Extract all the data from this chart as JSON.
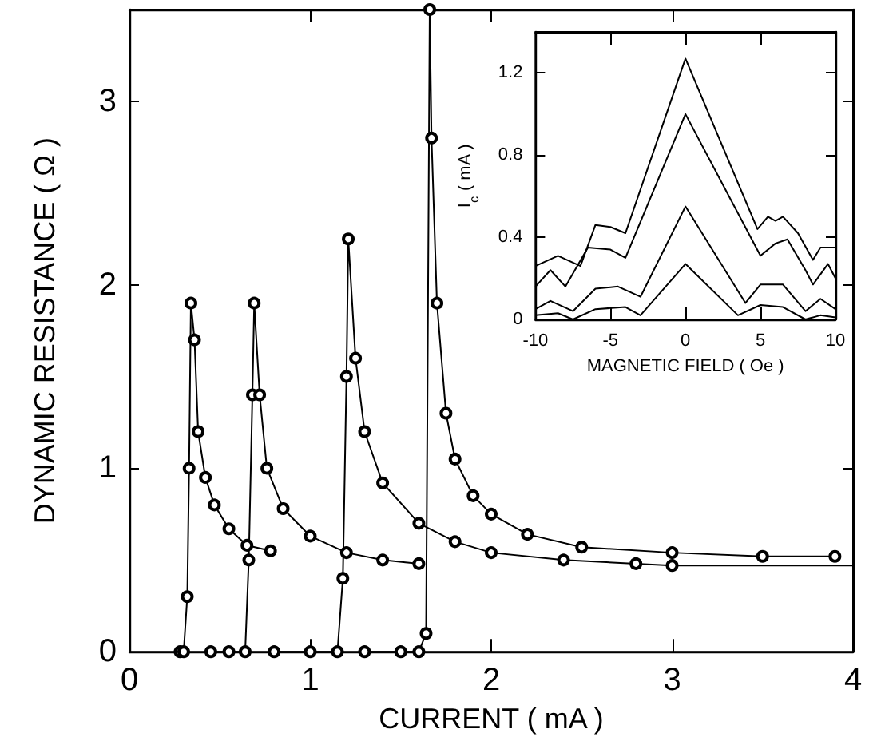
{
  "chart_data": [
    {
      "type": "line",
      "xlabel": "CURRENT ( mA )",
      "ylabel": "DYNAMIC RESISTANCE ( Ω )",
      "xlim": [
        0,
        4
      ],
      "ylim": [
        0,
        3.5
      ],
      "xticks": [
        0,
        1,
        2,
        3,
        4
      ],
      "yticks": [
        0,
        1,
        2,
        3
      ],
      "grid": false,
      "marker": "circle",
      "line_style": "solid",
      "series": [
        {
          "color": "#000000",
          "x": [
            0.28,
            0.3,
            0.32,
            0.33,
            0.34,
            0.36,
            0.38,
            0.42,
            0.47,
            0.55,
            0.65,
            0.78
          ],
          "values": [
            0,
            0,
            0.3,
            1.0,
            1.9,
            1.7,
            1.2,
            0.95,
            0.8,
            0.67,
            0.58,
            0.55
          ]
        },
        {
          "color": "#000000",
          "x": [
            0.45,
            0.55,
            0.64,
            0.66,
            0.68,
            0.69,
            0.72,
            0.76,
            0.85,
            1.0,
            1.2,
            1.4,
            1.6
          ],
          "values": [
            0,
            0,
            0,
            0.5,
            1.4,
            1.9,
            1.4,
            1.0,
            0.78,
            0.63,
            0.54,
            0.5,
            0.48
          ]
        },
        {
          "color": "#000000",
          "x": [
            0.8,
            1.0,
            1.15,
            1.18,
            1.2,
            1.21,
            1.25,
            1.3,
            1.4,
            1.6,
            1.8,
            2.0,
            2.4,
            2.8,
            3.0
          ],
          "values": [
            0,
            0,
            0,
            0.4,
            1.5,
            2.25,
            1.6,
            1.2,
            0.92,
            0.7,
            0.6,
            0.54,
            0.5,
            0.48,
            0.47
          ]
        },
        {
          "color": "#000000",
          "x": [
            1.3,
            1.5,
            1.6,
            1.64,
            1.66,
            1.67,
            1.7,
            1.75,
            1.8,
            1.9,
            2.0,
            2.2,
            2.5,
            3.0,
            3.5,
            3.9
          ],
          "values": [
            0,
            0,
            0,
            0.1,
            3.5,
            2.8,
            1.9,
            1.3,
            1.05,
            0.85,
            0.75,
            0.64,
            0.57,
            0.54,
            0.52,
            0.52
          ]
        },
        {
          "color": "#000000",
          "marker": "none",
          "x": [
            3.0,
            4.0
          ],
          "values": [
            0.47,
            0.47
          ]
        }
      ]
    },
    {
      "type": "line",
      "xlabel": "MAGNETIC FIELD ( Oe )",
      "ylabel": "I$_{c}$ ( mA )",
      "xlim": [
        -10,
        10
      ],
      "ylim": [
        0,
        1.4
      ],
      "xticks": [
        -10,
        -5,
        0,
        5,
        10
      ],
      "yticks": [
        0,
        0.4,
        0.8,
        1.2
      ],
      "grid": false,
      "marker": "none",
      "line_style": "solid",
      "series": [
        {
          "color": "#000000",
          "x": [
            -10,
            -8.5,
            -7,
            -6,
            -5,
            -4,
            0,
            4.8,
            5.5,
            6,
            6.5,
            7.5,
            8.5,
            9,
            10
          ],
          "values": [
            0.26,
            0.31,
            0.26,
            0.46,
            0.45,
            0.42,
            1.27,
            0.44,
            0.5,
            0.48,
            0.5,
            0.42,
            0.29,
            0.35,
            0.35
          ]
        },
        {
          "color": "#000000",
          "x": [
            -10,
            -9,
            -8,
            -6.5,
            -5,
            -4,
            0,
            5,
            6,
            6.8,
            8,
            8.5,
            9.5,
            10
          ],
          "values": [
            0.16,
            0.24,
            0.16,
            0.35,
            0.34,
            0.3,
            1.0,
            0.31,
            0.37,
            0.39,
            0.24,
            0.17,
            0.27,
            0.2
          ]
        },
        {
          "color": "#000000",
          "x": [
            -10,
            -9,
            -7.5,
            -6,
            -4.5,
            -3,
            0,
            4,
            5,
            6.5,
            8,
            9,
            10
          ],
          "values": [
            0.05,
            0.09,
            0.04,
            0.15,
            0.16,
            0.11,
            0.55,
            0.08,
            0.17,
            0.17,
            0.04,
            0.1,
            0.05
          ]
        },
        {
          "color": "#000000",
          "x": [
            -10,
            -8.5,
            -7.5,
            -6,
            -4,
            -3,
            0,
            3.5,
            5,
            6.5,
            8,
            9,
            10
          ],
          "values": [
            0.02,
            0.03,
            0,
            0.05,
            0.06,
            0.02,
            0.27,
            0.02,
            0.07,
            0.06,
            0,
            0.02,
            0.01
          ]
        }
      ]
    }
  ]
}
